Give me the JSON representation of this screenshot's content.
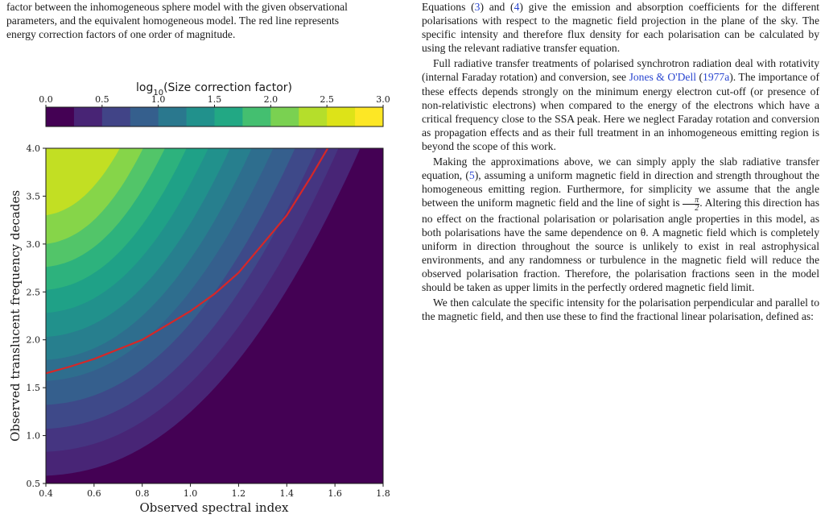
{
  "caption": {
    "line1": "factor between the inhomogeneous sphere model with the given observational",
    "line2": "parameters, and the equivalent homogeneous model. The red line represents",
    "line3": "energy correction factors of one order of magnitude."
  },
  "chart_data": {
    "type": "heatmap",
    "subtype": "filled-contour",
    "colorbar": {
      "label_prefix": "log",
      "label_sub": "10",
      "label_rest": "(Size correction factor)",
      "ticks": [
        "0.0",
        "0.5",
        "1.0",
        "1.5",
        "2.0",
        "2.5",
        "3.0"
      ],
      "range": [
        0.0,
        3.0
      ],
      "levels": 12,
      "colors": [
        "#440154",
        "#482878",
        "#3e4989",
        "#31688e",
        "#26828e",
        "#1f9e89",
        "#35b779",
        "#6ece58",
        "#b5de2b",
        "#fde725"
      ]
    },
    "xlabel": "Observed spectral index",
    "ylabel": "Observed translucent frequency decades",
    "xlim": [
      0.4,
      1.8
    ],
    "ylim": [
      0.5,
      4.0
    ],
    "xticks": [
      "0.4",
      "0.6",
      "0.8",
      "1.0",
      "1.2",
      "1.4",
      "1.6",
      "1.8"
    ],
    "yticks": [
      "0.5",
      "1.0",
      "1.5",
      "2.0",
      "2.5",
      "3.0",
      "3.5",
      "4.0"
    ],
    "red_contour": {
      "description": "energy correction factor of one order of magnitude",
      "color": "#d62728",
      "x": [
        0.4,
        0.5,
        0.6,
        0.7,
        0.8,
        0.9,
        1.0,
        1.1,
        1.2,
        1.3,
        1.4,
        1.5,
        1.57
      ],
      "y": [
        1.65,
        1.72,
        1.8,
        1.9,
        2.0,
        2.15,
        2.3,
        2.48,
        2.7,
        3.0,
        3.3,
        3.7,
        4.0
      ]
    }
  },
  "body": {
    "p1": [
      {
        "t": "Equations ("
      },
      {
        "t": "3",
        "link": true
      },
      {
        "t": ") and ("
      },
      {
        "t": "4",
        "link": true
      },
      {
        "t": ") give the emission and absorption coefficients for the different polarisations with respect to the magnetic field projection in the plane of the sky. The specific intensity and therefore flux density for each polarisation can be calculated by using the relevant radiative transfer equation."
      }
    ],
    "p2": [
      {
        "t": "Full radiative transfer treatments of polarised synchrotron radiation deal with rotativity (internal Faraday rotation) and conversion, see "
      },
      {
        "t": "Jones & O'Dell",
        "link": true
      },
      {
        "t": " ("
      },
      {
        "t": "1977a",
        "link": true
      },
      {
        "t": "). The importance of these effects depends strongly on the minimum energy electron cut-off (or presence of non-relativistic electrons) when compared to the energy of the electrons which have a critical frequency close to the SSA peak. Here we neglect Faraday rotation and conversion as propagation effects and as their full treatment in an inhomogeneous emitting region is beyond the scope of this work."
      }
    ],
    "p3a": [
      {
        "t": "Making the approximations above, we can simply apply the slab radiative transfer equation, ("
      },
      {
        "t": "5",
        "link": true
      },
      {
        "t": "), assuming a uniform magnetic field in direction and strength throughout the homogeneous emitting region. Furthermore, for simplicity we assume that the angle between the uniform magnetic field and the line of sight is "
      }
    ],
    "frac_top": "π",
    "frac_bot": "2",
    "p3b": ". Altering this direction has no effect on the fractional polarisation or polarisation angle properties in this model, as both polarisations have the same dependence on θ. A magnetic field which is completely uniform in direction throughout the source is unlikely to exist in real astrophysical environments, and any randomness or turbulence in the magnetic field will reduce the observed polarisation fraction. Therefore, the polarisation fractions seen in the model should be taken as upper limits in the perfectly ordered magnetic field limit.",
    "p4": "We then calculate the specific intensity for the polarisation perpendicular and parallel to the magnetic field, and then use these to find the fractional linear polarisation, defined as:"
  }
}
